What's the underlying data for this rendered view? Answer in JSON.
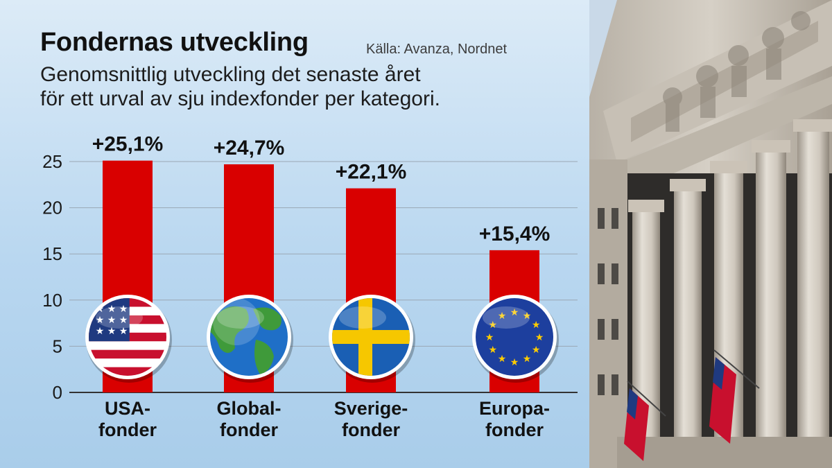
{
  "header": {
    "title": "Fondernas utveckling",
    "source": "Källa: Avanza, Nordnet",
    "subtitle_line1": "Genomsnittlig utveckling det senaste året",
    "subtitle_line2": "för ett urval av sju indexfonder per kategori."
  },
  "chart_data": {
    "type": "bar",
    "title": "Fondernas utveckling",
    "subtitle": "Genomsnittlig utveckling det senaste året för ett urval av sju indexfonder per kategori.",
    "categories": [
      "USA-fonder",
      "Globalfonder",
      "Sverigefonder",
      "Europafonder"
    ],
    "category_lines": [
      [
        "USA-",
        "fonder"
      ],
      [
        "Global-",
        "fonder"
      ],
      [
        "Sverige-",
        "fonder"
      ],
      [
        "Europa-",
        "fonder"
      ]
    ],
    "values": [
      25.1,
      24.7,
      22.1,
      15.4
    ],
    "data_labels": [
      "+25,1%",
      "+24,7%",
      "+22,1%",
      "+15,4%"
    ],
    "category_icons": [
      "usa-flag-icon",
      "globe-icon",
      "sweden-flag-icon",
      "eu-flag-icon"
    ],
    "ylim": [
      0,
      25
    ],
    "yticks": [
      0,
      5,
      10,
      15,
      20,
      25
    ],
    "grid": true,
    "bar_color": "#d90000",
    "grid_color": "#9aa7b4"
  },
  "photo": {
    "icon": "stock-exchange-building-photo"
  }
}
